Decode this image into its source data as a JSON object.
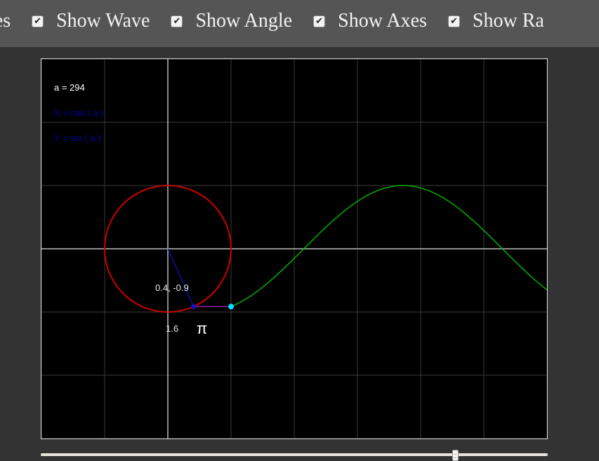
{
  "toolbar": {
    "options": [
      {
        "label": "tes",
        "checked": true,
        "partial": true
      },
      {
        "label": "Show Wave",
        "checked": true
      },
      {
        "label": "Show Angle",
        "checked": true
      },
      {
        "label": "Show Axes",
        "checked": true
      },
      {
        "label": "Show Ra",
        "checked": true
      }
    ]
  },
  "canvas": {
    "angle_readout": "a = 294",
    "x_formula": "X = cos ( a )",
    "y_formula": "Y = sin ( a )",
    "point_coords": "0.4, -0.9",
    "angle_radians": "1.6",
    "pi_symbol": "π",
    "angle_degrees": 294,
    "colors": {
      "background": "#000000",
      "grid": "#3a3a3a",
      "axes": "#bbbbbb",
      "circle": "#cc0000",
      "wave": "#00bb00",
      "radius": "#1010cc",
      "connector": "#aa22cc",
      "wave_point": "#00e5ff",
      "formula_text": "#0000aa",
      "label_text": "#ffffff"
    }
  },
  "slider": {
    "value_fraction": 0.8167
  }
}
